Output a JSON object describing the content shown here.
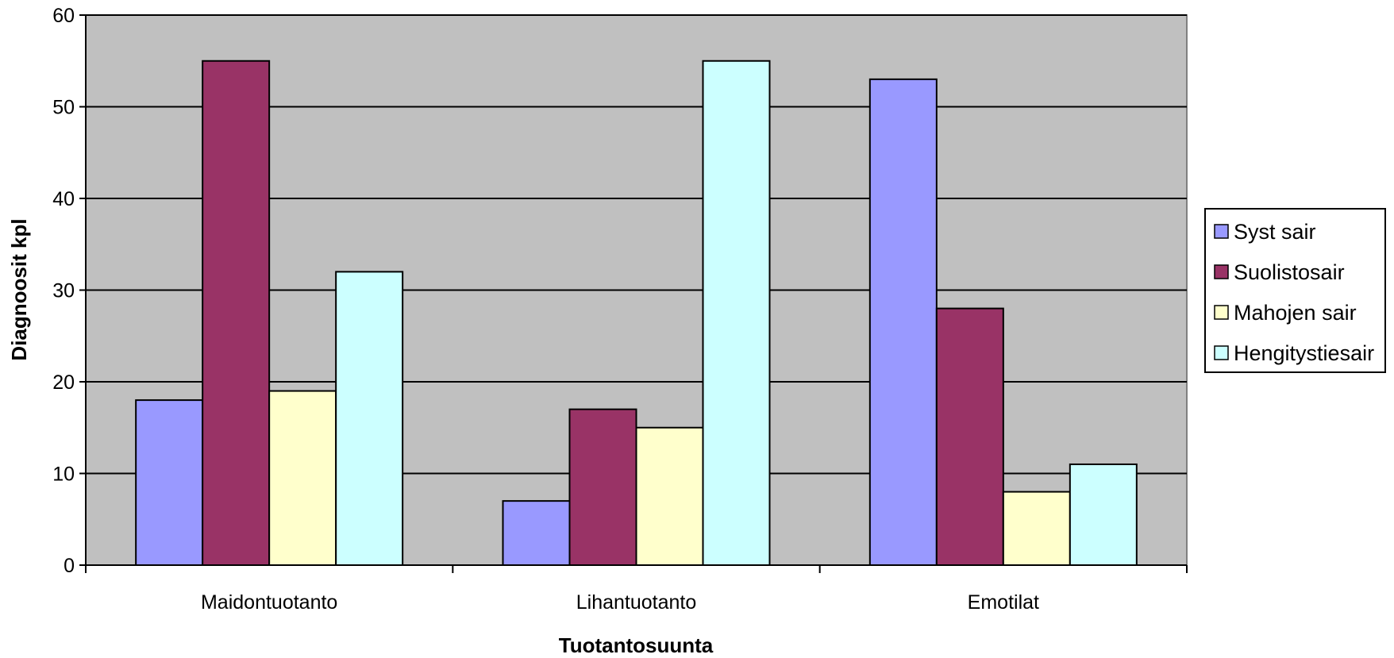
{
  "chart_data": {
    "type": "bar",
    "title": "",
    "xlabel": "Tuotantosuunta",
    "ylabel": "Diagnoosit kpl",
    "ylim": [
      0,
      60
    ],
    "yticks": [
      0,
      10,
      20,
      30,
      40,
      50,
      60
    ],
    "grid": true,
    "legend_position": "right",
    "plot_background": "#C0C0C0",
    "categories": [
      "Maidontuotanto",
      "Lihantuotanto",
      "Emotilat"
    ],
    "series": [
      {
        "name": "Syst sair",
        "color": "#9999FF",
        "values": [
          18,
          7,
          53
        ]
      },
      {
        "name": "Suolistosair",
        "color": "#993366",
        "values": [
          55,
          17,
          28
        ]
      },
      {
        "name": "Mahojen sair",
        "color": "#FFFFCC",
        "values": [
          19,
          15,
          8
        ]
      },
      {
        "name": "Hengitystiesair",
        "color": "#CCFFFF",
        "values": [
          32,
          55,
          11
        ]
      }
    ]
  }
}
